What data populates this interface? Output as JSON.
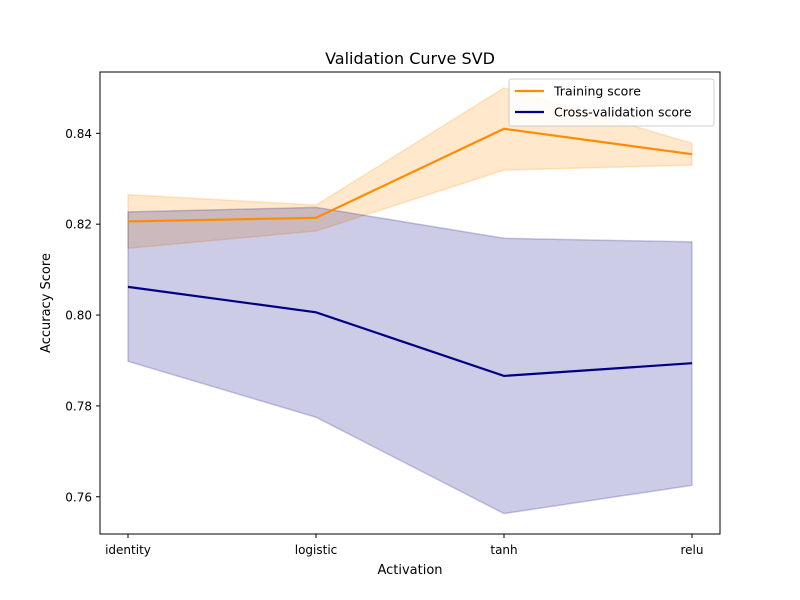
{
  "chart_data": {
    "type": "line",
    "title": "Validation Curve SVD",
    "xlabel": "Activation",
    "ylabel": "Accuracy Score",
    "categories": [
      "identity",
      "logistic",
      "tanh",
      "relu"
    ],
    "ylim": [
      0.7518,
      0.8535
    ],
    "yticks": [
      0.76,
      0.78,
      0.8,
      0.82,
      0.84
    ],
    "ytick_labels": [
      "0.76",
      "0.78",
      "0.80",
      "0.82",
      "0.84"
    ],
    "grid": false,
    "legend_position": "top-right",
    "series": [
      {
        "name": "Training score",
        "color": "#ff8c00",
        "values": [
          0.8206,
          0.8214,
          0.841,
          0.8354
        ],
        "upper": [
          0.8265,
          0.8242,
          0.85,
          0.8378
        ],
        "lower": [
          0.8147,
          0.8185,
          0.8319,
          0.833
        ]
      },
      {
        "name": "Cross-validation score",
        "color": "#000080",
        "values": [
          0.8062,
          0.8006,
          0.7866,
          0.7894
        ],
        "upper": [
          0.8227,
          0.8237,
          0.8169,
          0.8161
        ],
        "lower": [
          0.7898,
          0.7775,
          0.7563,
          0.7625
        ]
      }
    ]
  }
}
